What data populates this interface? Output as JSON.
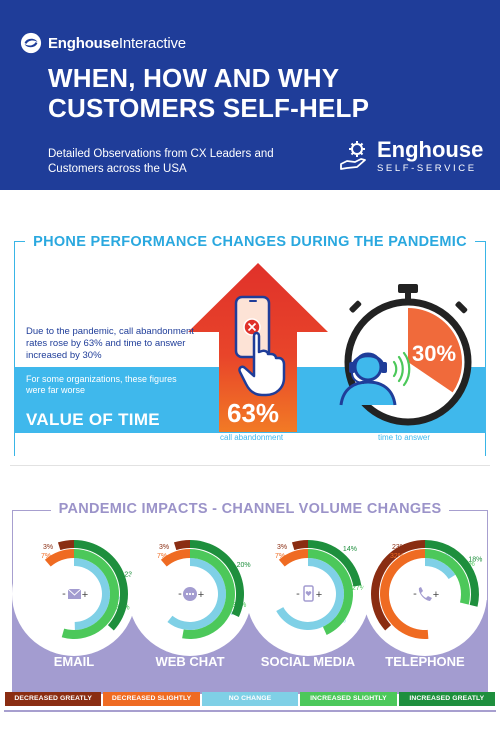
{
  "header": {
    "brand_bold": "Enghouse",
    "brand_light": "Interactive",
    "title_line1": "WHEN, HOW AND WHY",
    "title_line2": "CUSTOMERS SELF-HELP",
    "subtitle": "Detailed Observations from CX Leaders and Customers across the USA",
    "product_name": "Enghouse",
    "product_sub": "SELF-SERVICE"
  },
  "phone_section": {
    "title": "PHONE PERFORMANCE CHANGES DURING THE PANDEMIC",
    "body": "Due to the pandemic, call abandonment rates rose by 63% and time to answer increased by 30%",
    "note": "For some organizations, these figures were far worse",
    "value_of_time": "VALUE OF TIME",
    "abandon_pct": "63%",
    "abandon_label": "call abandonment",
    "answer_pct": "30%",
    "answer_label": "time to answer",
    "answer_fraction": 0.3
  },
  "channel_section": {
    "title": "PANDEMIC IMPACTS - CHANNEL VOLUME CHANGES",
    "minus": "-",
    "plus": "+",
    "channels": [
      {
        "name": "EMAIL",
        "icon": "envelope-icon",
        "values": {
          "decreased_greatly": 3,
          "decreased_slightly": 7,
          "no_change": 31,
          "increased_slightly": 34,
          "increased_greatly": 23
        }
      },
      {
        "name": "WEB CHAT",
        "icon": "chat-bubble-icon",
        "values": {
          "decreased_greatly": 3,
          "decreased_slightly": 7,
          "no_change": 38,
          "increased_slightly": 33,
          "increased_greatly": 20
        }
      },
      {
        "name": "SOCIAL MEDIA",
        "icon": "mobile-heart-icon",
        "values": {
          "decreased_greatly": 3,
          "decreased_slightly": 7,
          "no_change": 42,
          "increased_slightly": 27,
          "increased_greatly": 14
        }
      },
      {
        "name": "TELEPHONE",
        "icon": "phone-icon",
        "values": {
          "decreased_greatly": 23,
          "decreased_slightly": 32,
          "no_change": 10,
          "increased_slightly": 18,
          "increased_greatly": 18
        }
      }
    ],
    "legend": [
      {
        "key": "decreased_greatly",
        "label": "DECREASED GREATLY",
        "color": "#8a2d12"
      },
      {
        "key": "decreased_slightly",
        "label": "DECREASED SLIGHTLY",
        "color": "#ef6b22"
      },
      {
        "key": "no_change",
        "label": "NO CHANGE",
        "color": "#7fd0e6"
      },
      {
        "key": "increased_slightly",
        "label": "INCREASED SLIGHTLY",
        "color": "#4cc85a"
      },
      {
        "key": "increased_greatly",
        "label": "INCREASED GREATLY",
        "color": "#1e8f3d"
      }
    ]
  },
  "colors": {
    "header_blue": "#1f3d99",
    "sky_blue": "#3fb8ec",
    "purple": "#a39cd0",
    "arrow_red": "#e0312a",
    "arrow_orange": "#f27a25"
  }
}
